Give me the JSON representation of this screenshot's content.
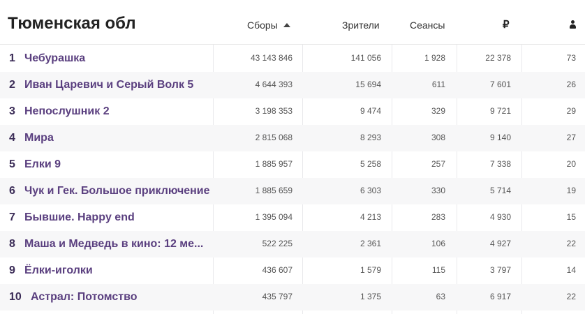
{
  "header": {
    "region": "Тюменская обл",
    "col_sbory": "Сборы",
    "col_zriteli": "Зрители",
    "col_seansy": "Сеансы",
    "col_ruble_icon": "₽",
    "sort_icon": "sort-ascending-icon",
    "person_icon": "person-icon"
  },
  "rows": [
    {
      "rank": "1",
      "title": "Чебурашка",
      "sbory": "43 143 846",
      "zriteli": "141 056",
      "seansy": "1 928",
      "rub": "22 378",
      "avg": "73"
    },
    {
      "rank": "2",
      "title": "Иван Царевич и Серый Волк 5",
      "sbory": "4 644 393",
      "zriteli": "15 694",
      "seansy": "611",
      "rub": "7 601",
      "avg": "26"
    },
    {
      "rank": "3",
      "title": "Непослушник 2",
      "sbory": "3 198 353",
      "zriteli": "9 474",
      "seansy": "329",
      "rub": "9 721",
      "avg": "29"
    },
    {
      "rank": "4",
      "title": "Мира",
      "sbory": "2 815 068",
      "zriteli": "8 293",
      "seansy": "308",
      "rub": "9 140",
      "avg": "27"
    },
    {
      "rank": "5",
      "title": "Елки 9",
      "sbory": "1 885 957",
      "zriteli": "5 258",
      "seansy": "257",
      "rub": "7 338",
      "avg": "20"
    },
    {
      "rank": "6",
      "title": "Чук и Гек. Большое приключение",
      "sbory": "1 885 659",
      "zriteli": "6 303",
      "seansy": "330",
      "rub": "5 714",
      "avg": "19"
    },
    {
      "rank": "7",
      "title": "Бывшие. Happy end",
      "sbory": "1 395 094",
      "zriteli": "4 213",
      "seansy": "283",
      "rub": "4 930",
      "avg": "15"
    },
    {
      "rank": "8",
      "title": "Маша и Медведь в кино: 12 ме...",
      "sbory": "522 225",
      "zriteli": "2 361",
      "seansy": "106",
      "rub": "4 927",
      "avg": "22"
    },
    {
      "rank": "9",
      "title": "Ёлки-иголки",
      "sbory": "436 607",
      "zriteli": "1 579",
      "seansy": "115",
      "rub": "3 797",
      "avg": "14"
    },
    {
      "rank": "10",
      "title": "Астрал: Потомство",
      "sbory": "435 797",
      "zriteli": "1 375",
      "seansy": "63",
      "rub": "6 917",
      "avg": "22"
    }
  ]
}
